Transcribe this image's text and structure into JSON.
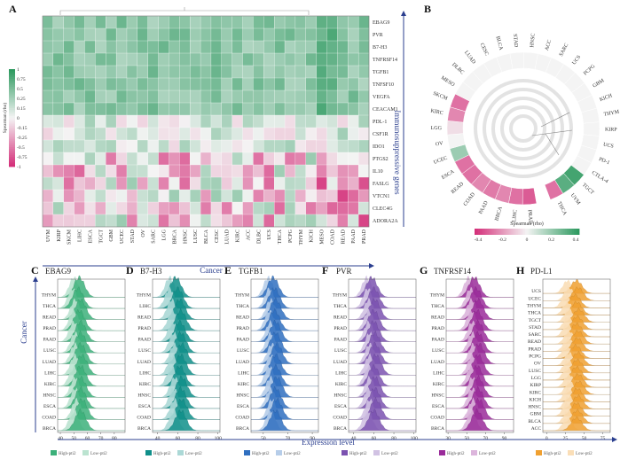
{
  "figure": {
    "panels": {
      "A": {
        "label": "A",
        "x_title": "Cancer",
        "y_title": "Immunosuppressive genes"
      },
      "B": {
        "label": "B"
      },
      "C": {
        "label": "C",
        "title": "EBAG9"
      },
      "D": {
        "label": "D",
        "title": "B7-H3"
      },
      "E": {
        "label": "E",
        "title": "TGFB1"
      },
      "F": {
        "label": "F",
        "title": "PVR"
      },
      "G": {
        "label": "G",
        "title": "TNFRSF14"
      },
      "H": {
        "label": "H",
        "title": "PD-L1"
      }
    },
    "ridge_x_title": "Expression level",
    "ridge_y_title": "Cancer",
    "legend_high": "High-pti2",
    "legend_low": "Low-pti2"
  },
  "colors": {
    "green": "#3cb07a",
    "teal": "#0f8f8a",
    "blue": "#2f6fc0",
    "purple": "#7b52b0",
    "magenta": "#9a2b9a",
    "orange": "#f0a030",
    "neg": "#d4307a",
    "pos": "#2e9a60",
    "axis": "#2b3f8f"
  },
  "chart_data": [
    {
      "id": "A",
      "type": "heatmap",
      "rows": [
        "EBAG9",
        "PVR",
        "B7-H3",
        "TNFRSF14",
        "TGFB1",
        "TNFSF10",
        "VEGFA",
        "CEACAM1",
        "PDL-1",
        "CSF1R",
        "IDO1",
        "PTGS2",
        "IL10",
        "FASLG",
        "VTCN1",
        "CLEC4G",
        "ADORA2A"
      ],
      "columns": [
        "UVM",
        "KIRP",
        "SKCM",
        "LIHC",
        "ESCA",
        "TGCT",
        "GBM",
        "UCEC",
        "STAD",
        "OV",
        "SARC",
        "LGG",
        "BRCA",
        "HNSC",
        "LUSC",
        "BLCA",
        "CESC",
        "LUAD",
        "KIRC",
        "ACC",
        "DLBC",
        "UCS",
        "THCA",
        "PCPG",
        "THYM",
        "KICH",
        "MESO",
        "COAD",
        "READ",
        "PAAD",
        "PRAD"
      ],
      "colorbar": {
        "title": "Spearman (rho)",
        "ticks": [
          "1",
          "0.75",
          "0.5",
          "0.25",
          "0.15",
          "0",
          "-0.15",
          "-0.25",
          "-0.5",
          "-0.75",
          "-1"
        ]
      }
    },
    {
      "id": "B",
      "type": "circular-heatmap",
      "categories": [
        "PRAD",
        "LIHC",
        "BRCA",
        "PAAD",
        "COAD",
        "READ",
        "ESCA",
        "UCEC",
        "OV",
        "LGG",
        "KIRC",
        "SKCM",
        "MESO",
        "DLBC",
        "LUAD",
        "CESC",
        "BLCA",
        "STAD",
        "HNSC",
        "ACC",
        "SARC",
        "UCS",
        "PCPG",
        "GBM",
        "KICH",
        "THYM",
        "KIRP",
        "UCS",
        "PD-1",
        "CTLA-4",
        "TGCT",
        "UVM",
        "THCA"
      ],
      "values": [
        -0.35,
        -0.3,
        -0.25,
        -0.28,
        -0.25,
        -0.3,
        -0.3,
        0.2,
        0,
        -0.05,
        -0.25,
        -0.3,
        0,
        0,
        0,
        0,
        0,
        0,
        0,
        0,
        0,
        0,
        0,
        0,
        0,
        0,
        0,
        0,
        0,
        0,
        0.4,
        0.35,
        -0.3
      ],
      "colorbar": {
        "title": "Spearman (rho)",
        "ticks": [
          "-0.4",
          "-0.2",
          "0",
          "0.2",
          "0.4"
        ]
      }
    },
    {
      "id": "C",
      "type": "ridgeline",
      "title": "EBAG9",
      "categories": [
        "THYM",
        "THCA",
        "READ",
        "PRAD",
        "PAAD",
        "LUSC",
        "LUAD",
        "LIHC",
        "KIRC",
        "HNSC",
        "ESCA",
        "COAD",
        "BRCA"
      ],
      "xticks": [
        "40",
        "50",
        "60",
        "70",
        "80"
      ],
      "xlim": [
        38,
        88
      ],
      "high_peaks": [
        54,
        53,
        55,
        54,
        55,
        55,
        55,
        56,
        55,
        55,
        55,
        56,
        55
      ],
      "low_peaks": [
        50,
        49,
        51,
        50,
        50,
        51,
        51,
        51,
        50,
        51,
        51,
        52,
        50
      ]
    },
    {
      "id": "D",
      "type": "ridgeline",
      "title": "B7-H3",
      "categories": [
        "THYM",
        "LIHC",
        "READ",
        "PRAD",
        "PAAD",
        "LUSC",
        "LUAD",
        "LIHC",
        "KIRC",
        "HNSC",
        "ESCA",
        "COAD",
        "BRCA"
      ],
      "xticks": [
        "40",
        "60",
        "80",
        "100"
      ],
      "xlim": [
        35,
        102
      ],
      "high_peaks": [
        58,
        60,
        62,
        63,
        62,
        63,
        64,
        63,
        62,
        64,
        63,
        64,
        63
      ],
      "low_peaks": [
        52,
        52,
        54,
        55,
        55,
        56,
        57,
        55,
        54,
        57,
        56,
        57,
        56
      ]
    },
    {
      "id": "E",
      "type": "ridgeline",
      "title": "TGFB1",
      "categories": [
        "THYM",
        "THCA",
        "READ",
        "PRAD",
        "PAAD",
        "LUSC",
        "LUAD",
        "LIHC",
        "KIRC",
        "HNSC",
        "ESCA",
        "COAD",
        "BRCA"
      ],
      "xticks": [
        "50",
        "70",
        "90"
      ],
      "xlim": [
        40,
        95
      ],
      "high_peaks": [
        58,
        59,
        60,
        59,
        60,
        60,
        61,
        60,
        60,
        61,
        60,
        61,
        60
      ],
      "low_peaks": [
        54,
        55,
        56,
        55,
        56,
        56,
        57,
        56,
        55,
        56,
        56,
        57,
        56
      ]
    },
    {
      "id": "F",
      "type": "ridgeline",
      "title": "PVR",
      "categories": [
        "THYM",
        "THCA",
        "READ",
        "PRAD",
        "PAAD",
        "LUSC",
        "LUAD",
        "LIHC",
        "KIRC",
        "HNSC",
        "ESCA",
        "COAD",
        "BRCA"
      ],
      "xticks": [
        "40",
        "60",
        "80",
        "100"
      ],
      "xlim": [
        35,
        102
      ],
      "high_peaks": [
        58,
        60,
        61,
        60,
        60,
        61,
        61,
        62,
        60,
        61,
        61,
        62,
        60
      ],
      "low_peaks": [
        53,
        54,
        55,
        55,
        55,
        56,
        56,
        56,
        55,
        56,
        55,
        56,
        54
      ]
    },
    {
      "id": "G",
      "type": "ridgeline",
      "title": "TNFRSF14",
      "categories": [
        "THYM",
        "THCA",
        "READ",
        "PRAD",
        "PAAD",
        "LUSC",
        "LUAD",
        "LIHC",
        "KIRC",
        "HNSC",
        "ESCA",
        "COAD",
        "BRCA"
      ],
      "xticks": [
        "30",
        "50",
        "70",
        "90"
      ],
      "xlim": [
        28,
        100
      ],
      "high_peaks": [
        58,
        60,
        62,
        61,
        62,
        62,
        63,
        62,
        61,
        62,
        62,
        63,
        61
      ],
      "low_peaks": [
        52,
        54,
        55,
        55,
        56,
        56,
        57,
        56,
        55,
        56,
        56,
        57,
        55
      ]
    },
    {
      "id": "H",
      "type": "ridgeline",
      "title": "PD-L1",
      "categories": [
        "UCS",
        "UCEC",
        "THYM",
        "THCA",
        "TGCT",
        "STAD",
        "SARC",
        "READ",
        "PRAD",
        "PCPG",
        "OV",
        "LUSC",
        "LGG",
        "KIRP",
        "KIRC",
        "KICH",
        "HNSC",
        "GBM",
        "BLCA",
        "ACC"
      ],
      "xticks": [
        "0",
        "25",
        "50",
        "75"
      ],
      "xlim": [
        -5,
        85
      ],
      "high_peaks": [
        40,
        42,
        38,
        40,
        43,
        41,
        40,
        42,
        41,
        39,
        42,
        41,
        40,
        42,
        43,
        41,
        42,
        40,
        41,
        40
      ],
      "low_peaks": [
        28,
        30,
        26,
        28,
        30,
        29,
        28,
        30,
        29,
        27,
        30,
        29,
        28,
        30,
        31,
        29,
        30,
        28,
        29,
        28
      ]
    }
  ]
}
